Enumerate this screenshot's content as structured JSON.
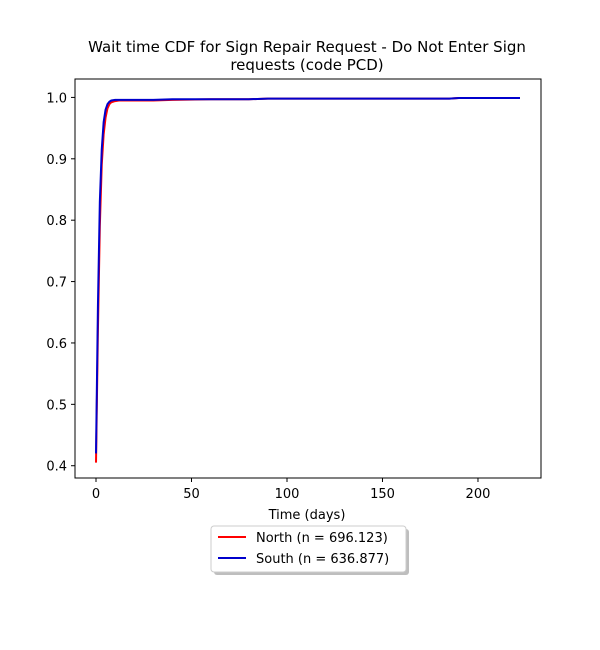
{
  "chart_data": {
    "type": "line",
    "title": [
      "Wait time CDF for Sign Repair Request - Do Not Enter Sign",
      "requests (code PCD)"
    ],
    "xlabel": "Time (days)",
    "ylabel": "",
    "xlim": [
      -11,
      233
    ],
    "ylim": [
      0.38,
      1.03
    ],
    "xticks": [
      0,
      50,
      100,
      150,
      200
    ],
    "yticks": [
      0.4,
      0.5,
      0.6,
      0.7,
      0.8,
      0.9,
      1.0
    ],
    "xtick_labels": [
      "0",
      "50",
      "100",
      "150",
      "200"
    ],
    "ytick_labels": [
      "0.4",
      "0.5",
      "0.6",
      "0.7",
      "0.8",
      "0.9",
      "1.0"
    ],
    "grid": false,
    "legend_position": "bottom-center",
    "series": [
      {
        "name": "North (n = 696.123)",
        "color": "#ff0000",
        "x": [
          0,
          1,
          2,
          3,
          4,
          5,
          6,
          7,
          8,
          10,
          12,
          15,
          20,
          30,
          40,
          60,
          80,
          90,
          120,
          150,
          185,
          190,
          200,
          222
        ],
        "y": [
          0.405,
          0.62,
          0.79,
          0.89,
          0.94,
          0.967,
          0.982,
          0.989,
          0.992,
          0.994,
          0.995,
          0.995,
          0.995,
          0.995,
          0.996,
          0.997,
          0.997,
          0.998,
          0.998,
          0.998,
          0.998,
          0.999,
          0.999,
          0.999
        ]
      },
      {
        "name": "South (n = 636.877)",
        "color": "#0000cc",
        "x": [
          0,
          1,
          2,
          3,
          4,
          5,
          6,
          7,
          8,
          10,
          12,
          15,
          20,
          30,
          40,
          60,
          80,
          90,
          120,
          150,
          185,
          190,
          200,
          222
        ],
        "y": [
          0.42,
          0.66,
          0.83,
          0.915,
          0.96,
          0.98,
          0.989,
          0.993,
          0.995,
          0.996,
          0.996,
          0.996,
          0.996,
          0.996,
          0.997,
          0.997,
          0.997,
          0.998,
          0.998,
          0.998,
          0.998,
          0.999,
          0.999,
          0.999
        ]
      }
    ]
  }
}
